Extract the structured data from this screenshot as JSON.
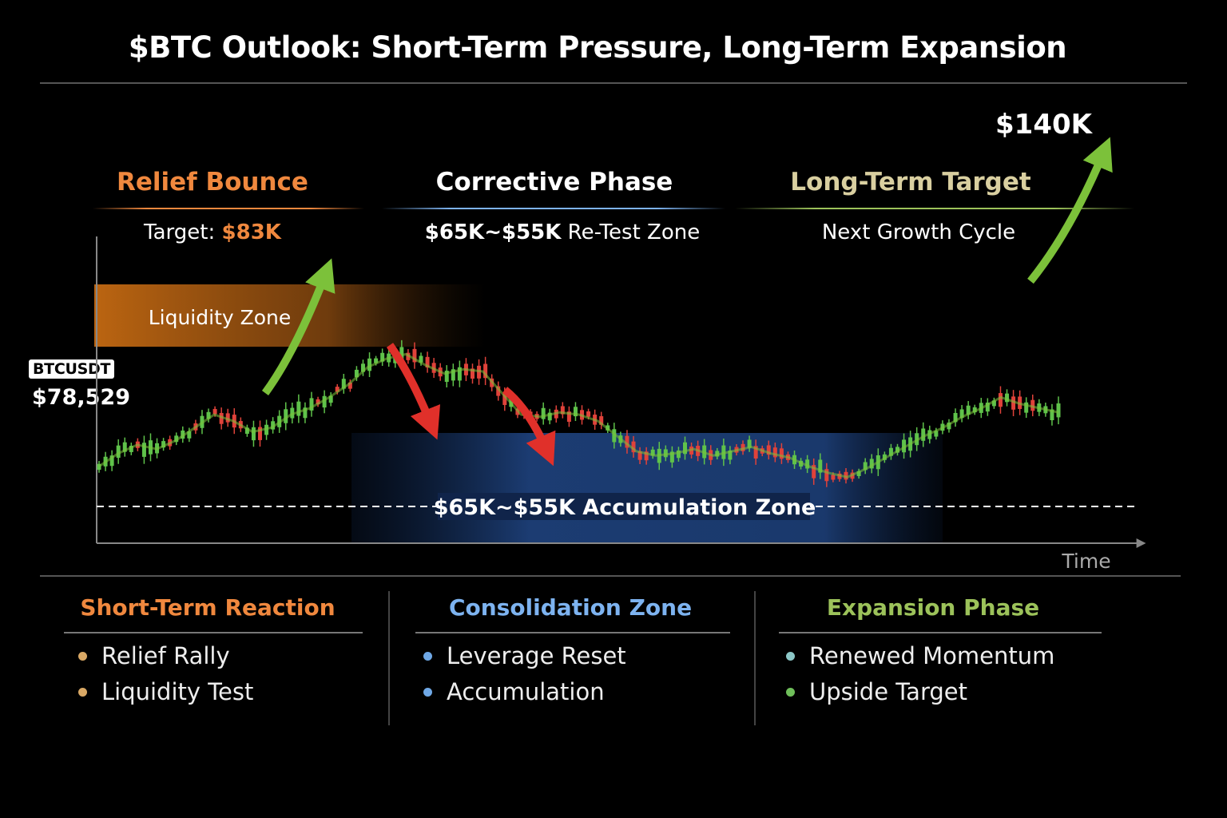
{
  "title": "$BTC Outlook: Short-Term Pressure, Long-Term Expansion",
  "colors": {
    "orange": "#F0883E",
    "blue": "#7DB3F0",
    "green": "#9CC25A",
    "khaki": "#D9CFA0",
    "up": "#5FC24A",
    "down": "#E0423A"
  },
  "phases": [
    {
      "title": "Relief Bounce",
      "sub_prefix": "Target: ",
      "sub_value": "$83K"
    },
    {
      "title": "Corrective Phase",
      "sub_value": "$65K~$55K",
      "sub_suffix": " Re-Test Zone"
    },
    {
      "title": "Long-Term Target",
      "sub": "Next Growth Cycle"
    }
  ],
  "ticker": {
    "symbol": "BTCUSDT",
    "price": "$78,529"
  },
  "chart_data": {
    "type": "line",
    "xlabel": "Time",
    "ylabel": "",
    "zones": [
      {
        "label": "Liquidity Zone"
      },
      {
        "label": "$65K~$55K Accumulation Zone"
      }
    ],
    "annotations": [
      "$140K"
    ],
    "path_points": [
      [
        0,
        0.06
      ],
      [
        0.02,
        0.12
      ],
      [
        0.04,
        0.16
      ],
      [
        0.06,
        0.14
      ],
      [
        0.08,
        0.18
      ],
      [
        0.1,
        0.24
      ],
      [
        0.12,
        0.3
      ],
      [
        0.14,
        0.27
      ],
      [
        0.16,
        0.22
      ],
      [
        0.18,
        0.24
      ],
      [
        0.2,
        0.3
      ],
      [
        0.22,
        0.33
      ],
      [
        0.24,
        0.38
      ],
      [
        0.26,
        0.44
      ],
      [
        0.28,
        0.52
      ],
      [
        0.3,
        0.56
      ],
      [
        0.32,
        0.58
      ],
      [
        0.34,
        0.53
      ],
      [
        0.36,
        0.49
      ],
      [
        0.38,
        0.51
      ],
      [
        0.4,
        0.5
      ],
      [
        0.42,
        0.4
      ],
      [
        0.44,
        0.3
      ],
      [
        0.46,
        0.29
      ],
      [
        0.48,
        0.31
      ],
      [
        0.5,
        0.3
      ],
      [
        0.52,
        0.27
      ],
      [
        0.54,
        0.2
      ],
      [
        0.56,
        0.13
      ],
      [
        0.58,
        0.11
      ],
      [
        0.6,
        0.12
      ],
      [
        0.62,
        0.14
      ],
      [
        0.64,
        0.11
      ],
      [
        0.66,
        0.13
      ],
      [
        0.68,
        0.15
      ],
      [
        0.7,
        0.12
      ],
      [
        0.72,
        0.1
      ],
      [
        0.74,
        0.06
      ],
      [
        0.76,
        0.03
      ],
      [
        0.78,
        0.01
      ],
      [
        0.8,
        0.05
      ],
      [
        0.82,
        0.1
      ],
      [
        0.84,
        0.15
      ],
      [
        0.86,
        0.2
      ],
      [
        0.88,
        0.24
      ],
      [
        0.9,
        0.29
      ],
      [
        0.92,
        0.33
      ],
      [
        0.94,
        0.38
      ],
      [
        0.96,
        0.35
      ],
      [
        0.98,
        0.33
      ],
      [
        1,
        0.31
      ]
    ]
  },
  "top_label": "$140K",
  "sections": [
    {
      "title": "Short-Term Reaction",
      "items": [
        "Relief Rally",
        "Liquidity Test"
      ]
    },
    {
      "title": "Consolidation Zone",
      "items": [
        "Leverage Reset",
        "Accumulation"
      ]
    },
    {
      "title": "Expansion Phase",
      "items": [
        "Renewed Momentum",
        "Upside Target"
      ]
    }
  ]
}
